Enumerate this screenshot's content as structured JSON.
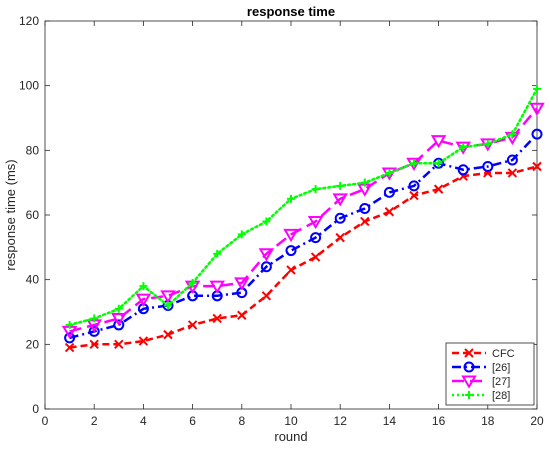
{
  "chart_data": {
    "type": "line",
    "title": "response time",
    "xlabel": "round",
    "ylabel": "response time (ms)",
    "xlim": [
      0,
      20
    ],
    "ylim": [
      0,
      120
    ],
    "xticks": [
      0,
      2,
      4,
      6,
      8,
      10,
      12,
      14,
      16,
      18,
      20
    ],
    "yticks": [
      0,
      20,
      40,
      60,
      80,
      100,
      120
    ],
    "grid": false,
    "legend_position": "bottom-right",
    "x": [
      1,
      2,
      3,
      4,
      5,
      6,
      7,
      8,
      9,
      10,
      11,
      12,
      13,
      14,
      15,
      16,
      17,
      18,
      19,
      20
    ],
    "series": [
      {
        "name": "CFC",
        "color": "#ff0000",
        "line_style": "dashed",
        "marker": "x",
        "values": [
          19,
          20,
          20,
          21,
          23,
          26,
          28,
          29,
          35,
          43,
          47,
          53,
          58,
          61,
          66,
          68,
          72,
          73,
          73,
          75
        ]
      },
      {
        "name": "[26]",
        "color": "#0000ff",
        "line_style": "dash-dot",
        "marker": "circle",
        "values": [
          22,
          24,
          26,
          31,
          32,
          35,
          35,
          36,
          44,
          49,
          53,
          59,
          62,
          67,
          69,
          76,
          74,
          75,
          77,
          85
        ]
      },
      {
        "name": "[27]",
        "color": "#ff00ff",
        "line_style": "long-dash",
        "marker": "triangle-down",
        "values": [
          24,
          26,
          28,
          34,
          35,
          38,
          38,
          39,
          48,
          54,
          58,
          65,
          68,
          73,
          76,
          83,
          81,
          82,
          84,
          93
        ]
      },
      {
        "name": "[28]",
        "color": "#00ff00",
        "line_style": "dotted",
        "marker": "plus",
        "values": [
          26,
          28,
          31,
          38,
          32,
          39,
          48,
          54,
          58,
          65,
          68,
          69,
          70,
          73,
          76,
          76,
          81,
          82,
          85,
          99
        ]
      }
    ]
  }
}
